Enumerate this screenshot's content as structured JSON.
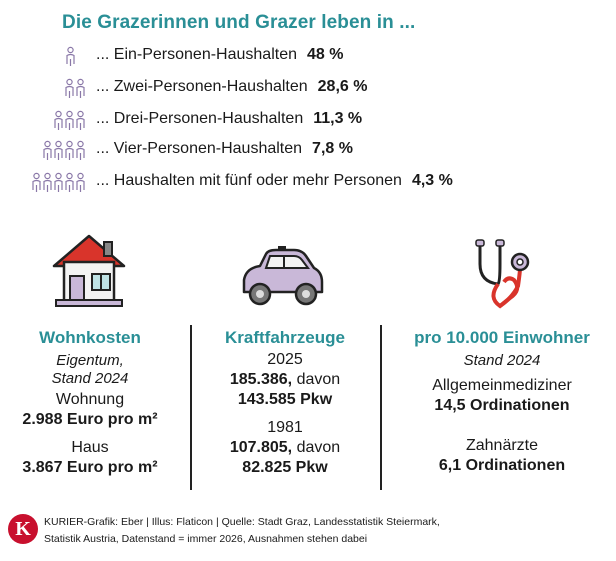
{
  "title": "Die Grazerinnen und Grazer leben in ...",
  "households": [
    {
      "label": "... Ein-Personen-Haushalten",
      "value": "48 %",
      "people": 1
    },
    {
      "label": "... Zwei-Personen-Haushalten",
      "value": "28,6 %",
      "people": 2
    },
    {
      "label": "... Drei-Personen-Haushalten",
      "value": "11,3 %",
      "people": 3
    },
    {
      "label": "... Vier-Personen-Haushalten",
      "value": "7,8 %",
      "people": 4
    },
    {
      "label": "... Haushalten mit fünf oder mehr Personen",
      "value": "4,3 %",
      "people": 5
    }
  ],
  "icons": [
    "house-icon",
    "car-icon",
    "stethoscope-icon",
    "person-icon"
  ],
  "colors": {
    "accent": "#2a8f96",
    "icon_fill": "#c9b8d8",
    "logo": "#c8102e"
  },
  "wohnkosten": {
    "title": "Wohnkosten",
    "sub1": "Eigentum,",
    "sub2": "Stand 2024",
    "wohnung_label": "Wohnung",
    "wohnung_value": "2.988 Euro pro m²",
    "haus_label": "Haus",
    "haus_value": "3.867 Euro pro m²"
  },
  "kfz": {
    "title": "Kraftfahrzeuge",
    "year1": "2025",
    "total1": "185.386,",
    "davon": "davon",
    "pkw1": "143.585 Pkw",
    "year2": "1981",
    "total2": "107.805,",
    "pkw2": "82.825 Pkw"
  },
  "aerzte": {
    "title": "pro 10.000 Einwohner",
    "sub": "Stand 2024",
    "allg_label": "Allgemeinmediziner",
    "allg_value": "14,5 Ordinationen",
    "zahn_label": "Zahnärzte",
    "zahn_value": "6,1 Ordinationen"
  },
  "footer": {
    "logo_letter": "K",
    "line1": "KURIER-Grafik: Eber | Illus: Flaticon | Quelle: Stadt Graz, Landesstatistik Steiermark,",
    "line2": "Statistik Austria, Datenstand = immer 2026, Ausnahmen stehen dabei"
  }
}
